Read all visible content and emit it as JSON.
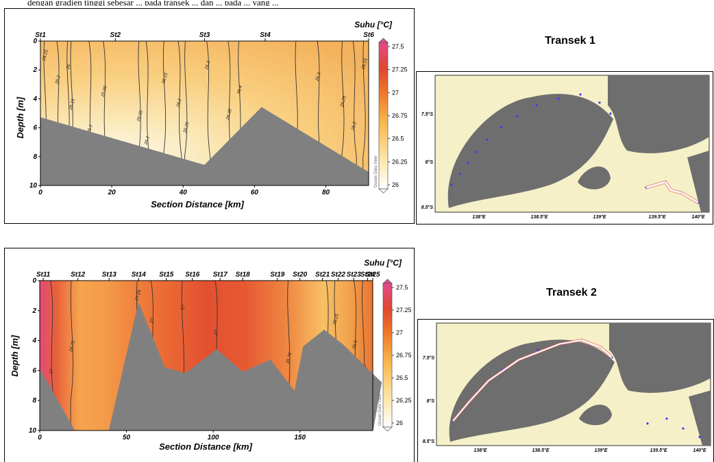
{
  "caption": "dengan gradien tinggi sebesar ... pada transek ... dan ... pada ... yang ...",
  "colorbar_title": "Suhu [°C]",
  "odv_label": "Ocean Data View",
  "chart_data": [
    {
      "type": "heatmap",
      "title": "",
      "xlabel": "Section Distance [km]",
      "ylabel": "Depth [m]",
      "xlim": [
        0,
        92
      ],
      "ylim": [
        10,
        0
      ],
      "x_ticks": [
        0,
        20,
        40,
        60,
        80
      ],
      "y_ticks": [
        0,
        2,
        4,
        6,
        8,
        10
      ],
      "colorbar": {
        "label": "Suhu [°C]",
        "range": [
          26,
          27.5
        ],
        "ticks": [
          26,
          26.25,
          26.5,
          26.75,
          27,
          27.25,
          27.5
        ]
      },
      "stations": [
        {
          "name": "St1",
          "km": 0
        },
        {
          "name": "St2",
          "km": 21
        },
        {
          "name": "St3",
          "km": 46
        },
        {
          "name": "St4",
          "km": 63
        },
        {
          "name": "St6",
          "km": 92
        }
      ],
      "contours": [
        {
          "label": "26.25",
          "km": 1.5
        },
        {
          "label": "26.2",
          "km": 5
        },
        {
          "label": "26.15",
          "km": 9
        },
        {
          "label": "26.1",
          "km": 14
        },
        {
          "label": "26",
          "km": 8
        },
        {
          "label": "25.95",
          "km": 18
        },
        {
          "label": "26.05",
          "km": 28
        },
        {
          "label": "26.1",
          "km": 30
        },
        {
          "label": "26.15",
          "km": 35
        },
        {
          "label": "26.2",
          "km": 39
        },
        {
          "label": "26.25",
          "km": 41
        },
        {
          "label": "26.3",
          "km": 47
        },
        {
          "label": "26.4",
          "km": 56
        },
        {
          "label": "26.35",
          "km": 53
        },
        {
          "label": "26.35",
          "km": 72
        },
        {
          "label": "26.3",
          "km": 78
        },
        {
          "label": "26.25",
          "km": 85
        },
        {
          "label": "26.2",
          "km": 88
        },
        {
          "label": "26.15",
          "km": 91
        }
      ],
      "bathymetry": [
        [
          0,
          5.3
        ],
        [
          46,
          8.6
        ],
        [
          62,
          4.6
        ],
        [
          92,
          9.1
        ]
      ]
    },
    {
      "type": "heatmap",
      "title": "",
      "xlabel": "Section Distance [km]",
      "ylabel": "Depth [m]",
      "xlim": [
        0,
        192
      ],
      "ylim": [
        10,
        0
      ],
      "x_ticks": [
        0,
        50,
        100,
        150
      ],
      "y_ticks": [
        0,
        2,
        4,
        6,
        8,
        10
      ],
      "colorbar": {
        "label": "Suhu [°C]",
        "range": [
          26,
          27.5
        ],
        "ticks": [
          26,
          26.25,
          26.5,
          26.75,
          27,
          27.25,
          27.5
        ]
      },
      "stations": [
        {
          "name": "St11",
          "km": 2
        },
        {
          "name": "St12",
          "km": 22
        },
        {
          "name": "St13",
          "km": 40
        },
        {
          "name": "St14",
          "km": 57
        },
        {
          "name": "St15",
          "km": 73
        },
        {
          "name": "St16",
          "km": 88
        },
        {
          "name": "St17",
          "km": 104
        },
        {
          "name": "St18",
          "km": 117
        },
        {
          "name": "St19",
          "km": 137
        },
        {
          "name": "St20",
          "km": 150
        },
        {
          "name": "St21",
          "km": 163
        },
        {
          "name": "St22",
          "km": 172
        },
        {
          "name": "St23",
          "km": 181
        },
        {
          "name": "St24",
          "km": 189
        },
        {
          "name": "St25",
          "km": 198
        }
      ],
      "contours": [
        {
          "label": "27.25",
          "km": 57
        },
        {
          "label": "27",
          "km": 65
        },
        {
          "label": "26.75",
          "km": 19
        },
        {
          "label": "27",
          "km": 7
        },
        {
          "label": "27",
          "km": 83
        },
        {
          "label": "27",
          "km": 102
        },
        {
          "label": "26.75",
          "km": 144
        },
        {
          "label": "26.5",
          "km": 166
        },
        {
          "label": "26.25",
          "km": 171
        },
        {
          "label": "26.5",
          "km": 182
        },
        {
          "label": "26.75",
          "km": 187
        }
      ],
      "bathymetry": [
        [
          0,
          5.9
        ],
        [
          20,
          10
        ],
        [
          40,
          10
        ],
        [
          57,
          1.5
        ],
        [
          72,
          5.8
        ],
        [
          84,
          6.2
        ],
        [
          102,
          4.6
        ],
        [
          117,
          6.1
        ],
        [
          133,
          5.3
        ],
        [
          147,
          7.4
        ],
        [
          152,
          4.4
        ],
        [
          164,
          3.3
        ],
        [
          175,
          4.3
        ],
        [
          189,
          5.9
        ],
        [
          197,
          6.8
        ]
      ]
    }
  ],
  "maps": [
    {
      "title": "Transek 1",
      "lat_ticks": [
        "7.5°S",
        "8°S",
        "8.5°S"
      ],
      "lon_ticks": [
        "138°E",
        "138.5°E",
        "139°E",
        "139.5°E",
        "140°E"
      ]
    },
    {
      "title": "Transek 2",
      "lat_ticks": [
        "7.5°S",
        "8°S",
        "8.5°S"
      ],
      "lon_ticks": [
        "138°E",
        "138.5°E",
        "139°E",
        "139.5°E",
        "140°E"
      ]
    }
  ]
}
